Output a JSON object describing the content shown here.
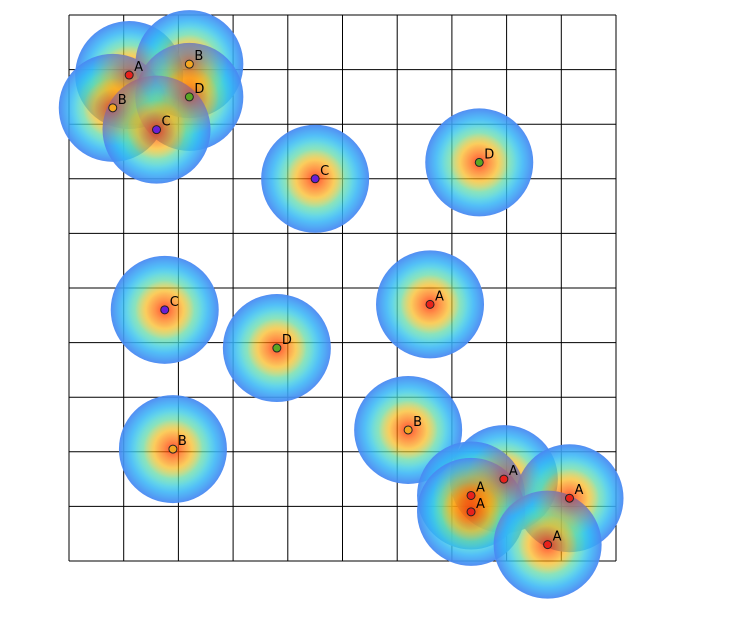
{
  "chart_data": {
    "type": "scatter",
    "title": "",
    "xlabel": "",
    "ylabel": "",
    "xlim": [
      0,
      10
    ],
    "ylim": [
      0,
      10
    ],
    "grid": true,
    "axes_visible": false,
    "heatmap_overlay": true,
    "category_colors": {
      "A": "#e8221c",
      "B": "#f4a622",
      "C": "#6a1fd6",
      "D": "#5aa624"
    },
    "points": [
      {
        "label": "A",
        "x": 1.1,
        "y": 8.9
      },
      {
        "label": "B",
        "x": 2.2,
        "y": 9.1
      },
      {
        "label": "B",
        "x": 0.8,
        "y": 8.3
      },
      {
        "label": "D",
        "x": 2.2,
        "y": 8.5
      },
      {
        "label": "C",
        "x": 1.6,
        "y": 7.9
      },
      {
        "label": "C",
        "x": 4.5,
        "y": 7.0
      },
      {
        "label": "D",
        "x": 7.5,
        "y": 7.3
      },
      {
        "label": "C",
        "x": 1.75,
        "y": 4.6
      },
      {
        "label": "A",
        "x": 6.6,
        "y": 4.7
      },
      {
        "label": "D",
        "x": 3.8,
        "y": 3.9
      },
      {
        "label": "B",
        "x": 1.9,
        "y": 2.05
      },
      {
        "label": "B",
        "x": 6.2,
        "y": 2.4
      },
      {
        "label": "A",
        "x": 7.95,
        "y": 1.5
      },
      {
        "label": "A",
        "x": 7.35,
        "y": 1.2
      },
      {
        "label": "A",
        "x": 9.15,
        "y": 1.15
      },
      {
        "label": "A",
        "x": 7.35,
        "y": 0.9
      },
      {
        "label": "A",
        "x": 8.75,
        "y": 0.3
      }
    ]
  }
}
